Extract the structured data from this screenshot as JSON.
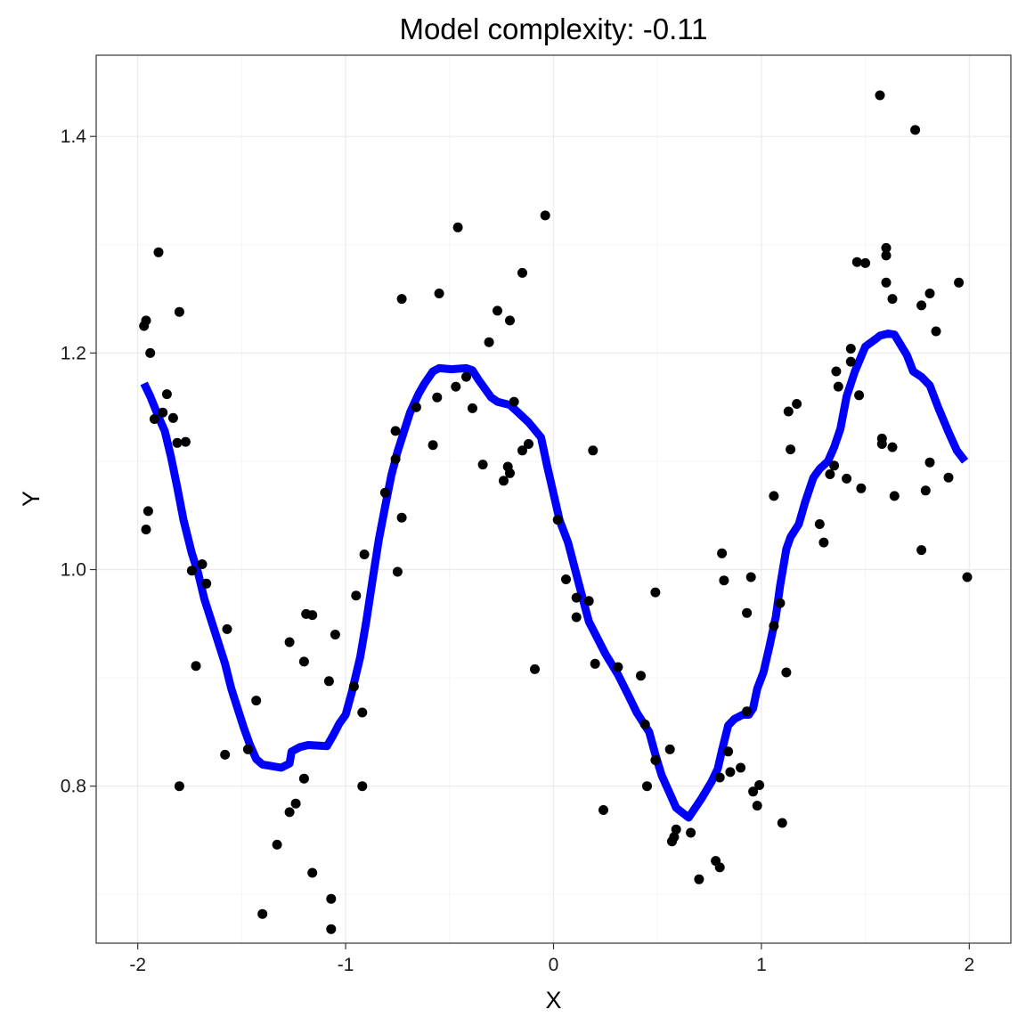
{
  "chart_data": {
    "type": "scatter",
    "title": "Model complexity: -0.11",
    "xlabel": "X",
    "ylabel": "Y",
    "xlim": [
      -2.2,
      2.2
    ],
    "ylim": [
      0.655,
      1.475
    ],
    "x_ticks": [
      -2,
      -1,
      0,
      1,
      2
    ],
    "x_tick_labels": [
      "-2",
      "-1",
      "0",
      "1",
      "2"
    ],
    "y_ticks": [
      0.8,
      1.0,
      1.2,
      1.4
    ],
    "y_tick_labels": [
      "0.8",
      "1.0",
      "1.2",
      "1.4"
    ],
    "grid": true,
    "legend": "none",
    "colors": {
      "points": "#000000",
      "fit_line": "#0000ff",
      "grid_major": "#ebebeb",
      "grid_minor": "#f5f5f5",
      "panel_border": "#333333"
    },
    "series": [
      {
        "kind": "points",
        "points": [
          [
            -1.97,
            1.225
          ],
          [
            -1.96,
            1.23
          ],
          [
            -1.96,
            1.037
          ],
          [
            -1.95,
            1.054
          ],
          [
            -1.94,
            1.2
          ],
          [
            -1.92,
            1.139
          ],
          [
            -1.9,
            1.293
          ],
          [
            -1.88,
            1.145
          ],
          [
            -1.86,
            1.162
          ],
          [
            -1.83,
            1.14
          ],
          [
            -1.81,
            1.117
          ],
          [
            -1.8,
            1.238
          ],
          [
            -1.8,
            0.8
          ],
          [
            -1.77,
            1.118
          ],
          [
            -1.74,
            0.999
          ],
          [
            -1.72,
            0.911
          ],
          [
            -1.69,
            1.005
          ],
          [
            -1.67,
            0.987
          ],
          [
            -1.57,
            0.945
          ],
          [
            -1.58,
            0.829
          ],
          [
            -1.47,
            0.834
          ],
          [
            -1.43,
            0.879
          ],
          [
            -1.4,
            0.682
          ],
          [
            -1.33,
            0.746
          ],
          [
            -1.27,
            0.933
          ],
          [
            -1.27,
            0.776
          ],
          [
            -1.24,
            0.784
          ],
          [
            -1.2,
            0.915
          ],
          [
            -1.2,
            0.807
          ],
          [
            -1.19,
            0.959
          ],
          [
            -1.16,
            0.958
          ],
          [
            -1.16,
            0.72
          ],
          [
            -1.07,
            0.696
          ],
          [
            -1.07,
            0.668
          ],
          [
            -1.08,
            0.897
          ],
          [
            -1.05,
            0.94
          ],
          [
            -0.96,
            0.892
          ],
          [
            -0.95,
            0.976
          ],
          [
            -0.92,
            0.868
          ],
          [
            -0.92,
            0.8
          ],
          [
            -0.91,
            1.014
          ],
          [
            -0.81,
            1.071
          ],
          [
            -0.76,
            1.128
          ],
          [
            -0.76,
            1.102
          ],
          [
            -0.75,
            0.998
          ],
          [
            -0.73,
            1.25
          ],
          [
            -0.73,
            1.048
          ],
          [
            -0.66,
            1.15
          ],
          [
            -0.58,
            1.115
          ],
          [
            -0.56,
            1.159
          ],
          [
            -0.55,
            1.255
          ],
          [
            -0.47,
            1.169
          ],
          [
            -0.46,
            1.316
          ],
          [
            -0.42,
            1.178
          ],
          [
            -0.39,
            1.149
          ],
          [
            -0.34,
            1.097
          ],
          [
            -0.31,
            1.21
          ],
          [
            -0.27,
            1.239
          ],
          [
            -0.24,
            1.082
          ],
          [
            -0.22,
            1.095
          ],
          [
            -0.21,
            1.23
          ],
          [
            -0.21,
            1.089
          ],
          [
            -0.19,
            1.155
          ],
          [
            -0.15,
            1.274
          ],
          [
            -0.15,
            1.11
          ],
          [
            -0.12,
            1.116
          ],
          [
            -0.09,
            0.908
          ],
          [
            -0.04,
            1.327
          ],
          [
            0.02,
            1.046
          ],
          [
            0.06,
            0.991
          ],
          [
            0.11,
            0.974
          ],
          [
            0.11,
            0.956
          ],
          [
            0.17,
            0.971
          ],
          [
            0.19,
            1.11
          ],
          [
            0.2,
            0.913
          ],
          [
            0.24,
            0.778
          ],
          [
            0.31,
            0.91
          ],
          [
            0.42,
            0.902
          ],
          [
            0.44,
            0.857
          ],
          [
            0.45,
            0.8
          ],
          [
            0.49,
            0.824
          ],
          [
            0.49,
            0.979
          ],
          [
            0.56,
            0.834
          ],
          [
            0.57,
            0.749
          ],
          [
            0.58,
            0.753
          ],
          [
            0.59,
            0.76
          ],
          [
            0.66,
            0.757
          ],
          [
            0.7,
            0.714
          ],
          [
            0.78,
            0.731
          ],
          [
            0.8,
            0.808
          ],
          [
            0.8,
            0.725
          ],
          [
            0.81,
            1.015
          ],
          [
            0.82,
            0.99
          ],
          [
            0.84,
            0.832
          ],
          [
            0.85,
            0.813
          ],
          [
            0.9,
            0.817
          ],
          [
            0.93,
            0.96
          ],
          [
            0.93,
            0.869
          ],
          [
            0.95,
            0.993
          ],
          [
            0.96,
            0.795
          ],
          [
            0.98,
            0.782
          ],
          [
            0.99,
            0.801
          ],
          [
            1.06,
            1.068
          ],
          [
            1.06,
            0.948
          ],
          [
            1.09,
            0.969
          ],
          [
            1.1,
            0.766
          ],
          [
            1.12,
            0.905
          ],
          [
            1.13,
            1.146
          ],
          [
            1.14,
            1.111
          ],
          [
            1.17,
            1.153
          ],
          [
            1.28,
            1.042
          ],
          [
            1.3,
            1.025
          ],
          [
            1.33,
            1.088
          ],
          [
            1.35,
            1.096
          ],
          [
            1.36,
            1.183
          ],
          [
            1.37,
            1.169
          ],
          [
            1.41,
            1.084
          ],
          [
            1.43,
            1.204
          ],
          [
            1.43,
            1.192
          ],
          [
            1.46,
            1.284
          ],
          [
            1.47,
            1.161
          ],
          [
            1.48,
            1.075
          ],
          [
            1.5,
            1.283
          ],
          [
            1.57,
            1.438
          ],
          [
            1.58,
            1.121
          ],
          [
            1.58,
            1.116
          ],
          [
            1.6,
            1.297
          ],
          [
            1.6,
            1.29
          ],
          [
            1.6,
            1.265
          ],
          [
            1.63,
            1.25
          ],
          [
            1.63,
            1.113
          ],
          [
            1.64,
            1.068
          ],
          [
            1.74,
            1.406
          ],
          [
            1.77,
            1.244
          ],
          [
            1.77,
            1.018
          ],
          [
            1.79,
            1.073
          ],
          [
            1.81,
            1.255
          ],
          [
            1.81,
            1.099
          ],
          [
            1.84,
            1.22
          ],
          [
            1.9,
            1.085
          ],
          [
            1.95,
            1.265
          ],
          [
            1.99,
            0.993
          ]
        ]
      },
      {
        "kind": "fit_line",
        "points": [
          [
            -1.97,
            1.172
          ],
          [
            -1.94,
            1.16
          ],
          [
            -1.9,
            1.141
          ],
          [
            -1.87,
            1.128
          ],
          [
            -1.84,
            1.104
          ],
          [
            -1.81,
            1.076
          ],
          [
            -1.78,
            1.046
          ],
          [
            -1.74,
            1.015
          ],
          [
            -1.71,
            0.997
          ],
          [
            -1.68,
            0.973
          ],
          [
            -1.65,
            0.955
          ],
          [
            -1.62,
            0.937
          ],
          [
            -1.58,
            0.913
          ],
          [
            -1.55,
            0.89
          ],
          [
            -1.52,
            0.872
          ],
          [
            -1.49,
            0.854
          ],
          [
            -1.46,
            0.838
          ],
          [
            -1.43,
            0.825
          ],
          [
            -1.4,
            0.82
          ],
          [
            -1.37,
            0.819
          ],
          [
            -1.31,
            0.817
          ],
          [
            -1.27,
            0.821
          ],
          [
            -1.26,
            0.832
          ],
          [
            -1.22,
            0.836
          ],
          [
            -1.18,
            0.838
          ],
          [
            -1.09,
            0.837
          ],
          [
            -1.06,
            0.847
          ],
          [
            -1.03,
            0.858
          ],
          [
            -1.0,
            0.866
          ],
          [
            -0.97,
            0.887
          ],
          [
            -0.93,
            0.919
          ],
          [
            -0.9,
            0.953
          ],
          [
            -0.87,
            0.991
          ],
          [
            -0.84,
            1.028
          ],
          [
            -0.81,
            1.058
          ],
          [
            -0.78,
            1.087
          ],
          [
            -0.75,
            1.109
          ],
          [
            -0.72,
            1.127
          ],
          [
            -0.69,
            1.145
          ],
          [
            -0.65,
            1.162
          ],
          [
            -0.62,
            1.172
          ],
          [
            -0.58,
            1.183
          ],
          [
            -0.55,
            1.186
          ],
          [
            -0.49,
            1.185
          ],
          [
            -0.42,
            1.186
          ],
          [
            -0.39,
            1.184
          ],
          [
            -0.36,
            1.175
          ],
          [
            -0.3,
            1.159
          ],
          [
            -0.27,
            1.155
          ],
          [
            -0.21,
            1.152
          ],
          [
            -0.17,
            1.145
          ],
          [
            -0.12,
            1.136
          ],
          [
            -0.06,
            1.122
          ],
          [
            -0.03,
            1.095
          ],
          [
            0.0,
            1.07
          ],
          [
            0.03,
            1.045
          ],
          [
            0.07,
            1.025
          ],
          [
            0.1,
            1.003
          ],
          [
            0.13,
            0.981
          ],
          [
            0.17,
            0.952
          ],
          [
            0.21,
            0.937
          ],
          [
            0.25,
            0.922
          ],
          [
            0.31,
            0.903
          ],
          [
            0.36,
            0.884
          ],
          [
            0.4,
            0.868
          ],
          [
            0.46,
            0.85
          ],
          [
            0.49,
            0.829
          ],
          [
            0.52,
            0.81
          ],
          [
            0.56,
            0.793
          ],
          [
            0.59,
            0.78
          ],
          [
            0.65,
            0.771
          ],
          [
            0.71,
            0.788
          ],
          [
            0.76,
            0.804
          ],
          [
            0.79,
            0.816
          ],
          [
            0.81,
            0.833
          ],
          [
            0.84,
            0.856
          ],
          [
            0.87,
            0.862
          ],
          [
            0.91,
            0.866
          ],
          [
            0.94,
            0.866
          ],
          [
            0.96,
            0.872
          ],
          [
            0.98,
            0.89
          ],
          [
            1.01,
            0.905
          ],
          [
            1.04,
            0.93
          ],
          [
            1.07,
            0.957
          ],
          [
            1.09,
            0.985
          ],
          [
            1.12,
            1.019
          ],
          [
            1.14,
            1.03
          ],
          [
            1.18,
            1.042
          ],
          [
            1.21,
            1.062
          ],
          [
            1.25,
            1.085
          ],
          [
            1.28,
            1.093
          ],
          [
            1.32,
            1.1
          ],
          [
            1.35,
            1.113
          ],
          [
            1.38,
            1.13
          ],
          [
            1.41,
            1.16
          ],
          [
            1.45,
            1.183
          ],
          [
            1.5,
            1.206
          ],
          [
            1.55,
            1.213
          ],
          [
            1.57,
            1.216
          ],
          [
            1.61,
            1.218
          ],
          [
            1.64,
            1.217
          ],
          [
            1.7,
            1.198
          ],
          [
            1.73,
            1.183
          ],
          [
            1.77,
            1.178
          ],
          [
            1.81,
            1.17
          ],
          [
            1.85,
            1.15
          ],
          [
            1.9,
            1.127
          ],
          [
            1.94,
            1.11
          ],
          [
            1.98,
            1.1
          ]
        ]
      }
    ]
  }
}
